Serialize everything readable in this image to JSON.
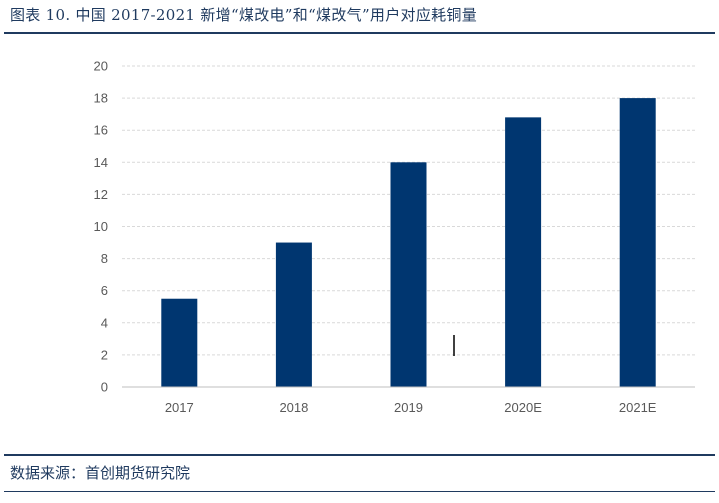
{
  "title": "图表 10. 中国 2017-2021 新增“煤改电”和“煤改气”用户对应耗铜量",
  "source": "数据来源：首创期货研究院",
  "chart_data": {
    "type": "bar",
    "categories": [
      "2017",
      "2018",
      "2019",
      "2020E",
      "2021E"
    ],
    "values": [
      5.5,
      9.0,
      14.0,
      16.8,
      18.0
    ],
    "yticks": [
      "0",
      "2",
      "4",
      "6",
      "8",
      "10",
      "12",
      "14",
      "16",
      "18",
      "20"
    ],
    "ylim": [
      0,
      20
    ],
    "title": "",
    "xlabel": "",
    "ylabel": "",
    "grid": true,
    "legend": "none",
    "bar_color": "#003670",
    "grid_color": "#d9d9d9"
  }
}
